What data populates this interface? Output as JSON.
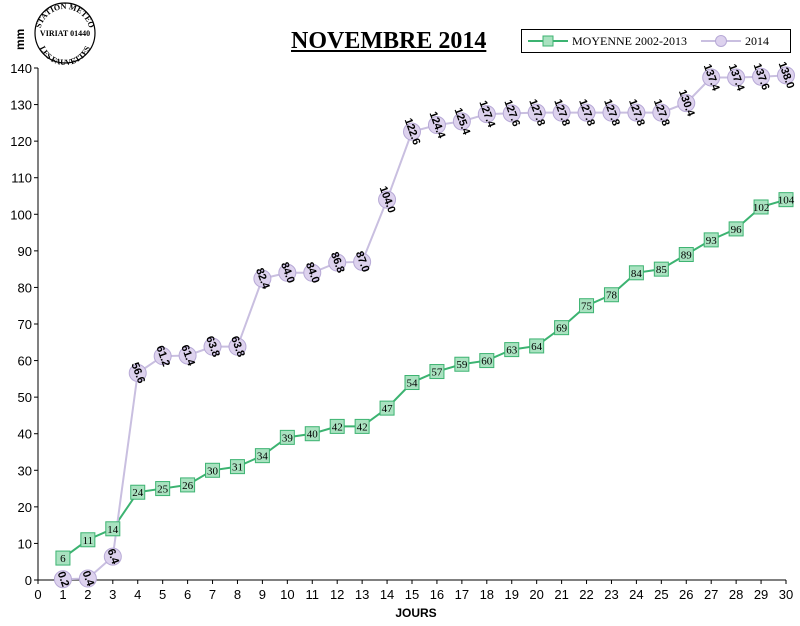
{
  "chart_data": {
    "type": "line",
    "title": "NOVEMBRE 2014",
    "xlabel": "JOURS",
    "ylabel": "mm",
    "xlim": [
      0,
      30
    ],
    "ylim": [
      0,
      140
    ],
    "xticks": [
      0,
      1,
      2,
      3,
      4,
      5,
      6,
      7,
      8,
      9,
      10,
      11,
      12,
      13,
      14,
      15,
      16,
      17,
      18,
      19,
      20,
      21,
      22,
      23,
      24,
      25,
      26,
      27,
      28,
      29,
      30
    ],
    "yticks": [
      0,
      10,
      20,
      30,
      40,
      50,
      60,
      70,
      80,
      90,
      100,
      110,
      120,
      130,
      140
    ],
    "grid": false,
    "legend_position": "top-right",
    "x": [
      1,
      2,
      3,
      4,
      5,
      6,
      7,
      8,
      9,
      10,
      11,
      12,
      13,
      14,
      15,
      16,
      17,
      18,
      19,
      20,
      21,
      22,
      23,
      24,
      25,
      26,
      27,
      28,
      29,
      30
    ],
    "series": [
      {
        "name": "MOYENNE 2002-2013",
        "color": "#3cb371",
        "fill": "#a9e2c0",
        "marker": "square",
        "values": [
          6,
          11,
          14,
          24,
          25,
          26,
          30,
          31,
          34,
          39,
          40,
          42,
          42,
          47,
          54,
          57,
          59,
          60,
          63,
          64,
          69,
          75,
          78,
          84,
          85,
          89,
          93,
          96,
          102,
          104
        ],
        "labels": [
          "6",
          "11",
          "14",
          "24",
          "25",
          "26",
          "30",
          "31",
          "34",
          "39",
          "40",
          "42",
          "42",
          "47",
          "54",
          "57",
          "59",
          "60",
          "63",
          "64",
          "69",
          "75",
          "78",
          "84",
          "85",
          "89",
          "93",
          "96",
          "102",
          "104"
        ]
      },
      {
        "name": "2014",
        "color": "#c9bfe0",
        "fill": "#ddd2ee",
        "marker": "circle",
        "values": [
          0.2,
          0.4,
          6.4,
          56.6,
          61.2,
          61.4,
          63.8,
          63.8,
          82.4,
          84.0,
          84.0,
          86.8,
          87.0,
          104.0,
          122.6,
          124.4,
          125.4,
          127.4,
          127.6,
          127.8,
          127.8,
          127.8,
          127.8,
          127.8,
          127.8,
          130.4,
          137.4,
          137.4,
          137.6,
          138.0
        ],
        "labels": [
          "0.2",
          "0.4",
          "6.4",
          "56.6",
          "61.2",
          "61.4",
          "63.8",
          "63.8",
          "82.4",
          "84.0",
          "84.0",
          "86.8",
          "87.0",
          "104.0",
          "122.6",
          "124.4",
          "125.4",
          "127.4",
          "127.6",
          "127.8",
          "127.8",
          "127.8",
          "127.8",
          "127.8",
          "127.8",
          "130.4",
          "137.4",
          "137.4",
          "137.6",
          "138.0"
        ]
      }
    ]
  },
  "logo": {
    "line1": "STATION METEO",
    "line2": "VIRIAT 01440",
    "line3": "LES FAUVETTES"
  }
}
